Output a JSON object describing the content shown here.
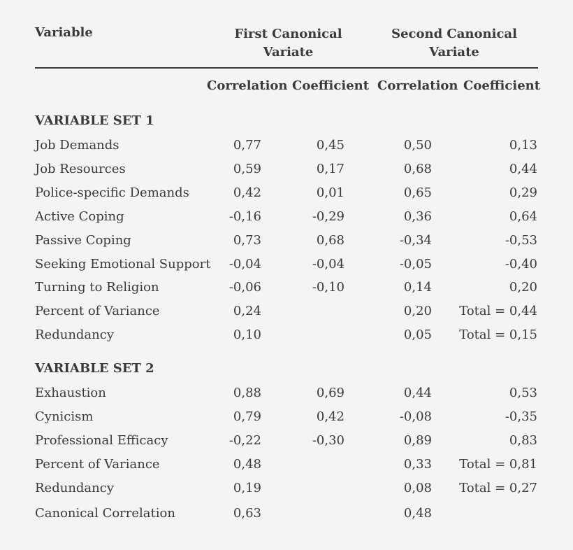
{
  "header": {
    "variable": "Variable",
    "first_canonical": [
      "First Canonical",
      "Variate"
    ],
    "second_canonical": [
      "Second Canonical",
      "Variate"
    ],
    "subheaders": [
      "Correlation",
      "Coefficient",
      "Correlation",
      "Coefficient"
    ]
  },
  "set1": {
    "title": "VARIABLE SET 1",
    "rows": [
      {
        "label": "Job Demands",
        "c1": "0,77",
        "c2": "0,45",
        "c3": "0,50",
        "c4": "0,13"
      },
      {
        "label": "Job Resources",
        "c1": "0,59",
        "c2": "0,17",
        "c3": "0,68",
        "c4": "0,44"
      },
      {
        "label": "Police-specific Demands",
        "c1": "0,42",
        "c2": "0,01",
        "c3": "0,65",
        "c4": "0,29"
      },
      {
        "label": "Active Coping",
        "c1": "-0,16",
        "c2": "-0,29",
        "c3": "0,36",
        "c4": "0,64"
      },
      {
        "label": "Passive Coping",
        "c1": "0,73",
        "c2": "0,68",
        "c3": "-0,34",
        "c4": "-0,53"
      },
      {
        "label": "Seeking Emotional Support",
        "c1": "-0,04",
        "c2": "-0,04",
        "c3": "-0,05",
        "c4": "-0,40"
      },
      {
        "label": "Turning to Religion",
        "c1": "-0,06",
        "c2": "-0,10",
        "c3": "0,14",
        "c4": "0,20"
      },
      {
        "label": "Percent of Variance",
        "c1": "0,24",
        "c2": "",
        "c3": "0,20",
        "c4": "Total = 0,44"
      },
      {
        "label": "Redundancy",
        "c1": "0,10",
        "c2": "",
        "c3": "0,05",
        "c4": "Total = 0,15"
      }
    ]
  },
  "set2": {
    "title": "VARIABLE SET 2",
    "rows": [
      {
        "label": "Exhaustion",
        "c1": "0,88",
        "c2": "0,69",
        "c3": "0,44",
        "c4": "0,53"
      },
      {
        "label": "Cynicism",
        "c1": "0,79",
        "c2": "0,42",
        "c3": "-0,08",
        "c4": "-0,35"
      },
      {
        "label": "Professional Efficacy",
        "c1": "-0,22",
        "c2": "-0,30",
        "c3": "0,89",
        "c4": "0,83"
      },
      {
        "label": "Percent of Variance",
        "c1": "0,48",
        "c2": "",
        "c3": "0,33",
        "c4": "Total = 0,81"
      },
      {
        "label": "Redundancy",
        "c1": "0,19",
        "c2": "",
        "c3": "0,08",
        "c4": "Total = 0,27"
      }
    ]
  },
  "canonical": {
    "label": "Canonical Correlation",
    "c1": "0,63",
    "c3": "0,48"
  }
}
